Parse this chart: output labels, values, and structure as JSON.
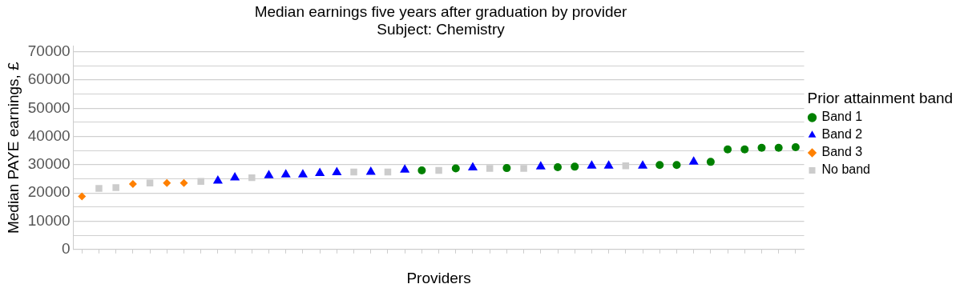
{
  "chart_data": {
    "type": "scatter",
    "title": "Median earnings five years after graduation by provider",
    "subtitle": "Subject: Chemistry",
    "xlabel": "Providers",
    "ylabel": "Median PAYE earnings, £",
    "legend_title": "Prior attainment band",
    "legend": "right",
    "grid": "y",
    "categories": [
      null,
      null,
      null,
      null,
      null,
      null,
      null,
      null,
      null,
      null,
      null,
      null,
      null,
      null,
      null,
      null,
      null,
      null,
      null,
      null,
      null,
      null,
      null,
      null,
      null,
      null,
      null,
      null,
      null,
      null,
      null,
      null,
      null,
      null,
      null,
      null,
      null,
      null,
      null,
      null,
      null,
      null,
      null
    ],
    "ylim": [
      0,
      72000
    ],
    "yticks": [
      0,
      {
        "value": 5000,
        "label": null
      },
      10000,
      {
        "value": 15000,
        "label": null
      },
      20000,
      {
        "value": 25000,
        "label": null
      },
      30000,
      {
        "value": 35000,
        "label": null
      },
      40000,
      {
        "value": 45000,
        "label": null
      },
      50000,
      {
        "value": 55000,
        "label": null
      },
      60000,
      {
        "value": 65000,
        "label": null
      },
      70000
    ],
    "series": [
      {
        "name": "Band 1",
        "color": "#008000",
        "marker": "circle",
        "values": [
          null,
          null,
          null,
          null,
          null,
          null,
          null,
          null,
          null,
          null,
          null,
          null,
          null,
          null,
          null,
          null,
          null,
          null,
          null,
          null,
          28000,
          null,
          28700,
          null,
          null,
          28800,
          null,
          null,
          29100,
          29300,
          null,
          null,
          null,
          null,
          29900,
          29900,
          null,
          31000,
          35400,
          35400,
          36000,
          36000,
          36200
        ]
      },
      {
        "name": "Band 2",
        "color": "#0000ff",
        "marker": "triangle",
        "values": [
          null,
          null,
          null,
          null,
          null,
          null,
          null,
          null,
          24300,
          25400,
          null,
          26200,
          26500,
          26500,
          27000,
          27300,
          null,
          27400,
          null,
          28200,
          null,
          null,
          null,
          29000,
          null,
          null,
          null,
          29300,
          null,
          null,
          29600,
          29600,
          null,
          29600,
          null,
          null,
          31000,
          null,
          null,
          null,
          null,
          null,
          null
        ]
      },
      {
        "name": "Band 3",
        "color": "#ff8000",
        "marker": "diamond",
        "values": [
          18800,
          null,
          null,
          23200,
          null,
          23500,
          23500,
          null,
          null,
          null,
          null,
          null,
          null,
          null,
          null,
          null,
          null,
          null,
          null,
          null,
          null,
          null,
          null,
          null,
          null,
          null,
          null,
          null,
          null,
          null,
          null,
          null,
          null,
          null,
          null,
          null,
          null,
          null,
          null,
          null,
          null,
          null,
          null
        ]
      },
      {
        "name": "No band",
        "color": "#cccccc",
        "marker": "square",
        "values": [
          null,
          21600,
          21900,
          null,
          23500,
          null,
          null,
          24100,
          null,
          null,
          25400,
          null,
          null,
          null,
          null,
          null,
          27400,
          null,
          27400,
          null,
          null,
          28000,
          null,
          null,
          28700,
          null,
          28700,
          null,
          null,
          null,
          null,
          null,
          29600,
          null,
          null,
          null,
          null,
          null,
          null,
          null,
          null,
          null,
          null
        ]
      }
    ]
  }
}
